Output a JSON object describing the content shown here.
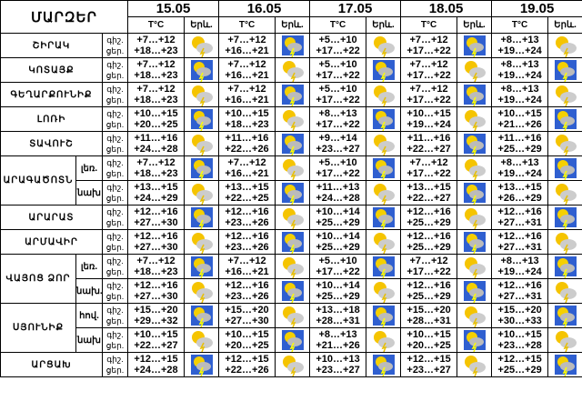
{
  "header": {
    "title": "ՄԱՐԶԵՐ",
    "dates": [
      "15.05",
      "16.05",
      "17.05",
      "18.05",
      "19.05"
    ],
    "temp": "T°C",
    "weather": "Երև.",
    "night": "գիշ.",
    "day": "ցեր."
  },
  "regions": [
    {
      "name": "ՇԻՐԱԿ",
      "parts": [
        {
          "days": [
            [
              "+7…+12",
              "+18…+23"
            ],
            [
              "+7…+12",
              "+16…+21"
            ],
            [
              "+5…+10",
              "+17…+22"
            ],
            [
              "+7…+12",
              "+17…+22"
            ],
            [
              "+8…+13",
              "+19…+24"
            ]
          ]
        }
      ]
    },
    {
      "name": "ԿՈՏԱՅՔ",
      "parts": [
        {
          "days": [
            [
              "+7…+12",
              "+18…+23"
            ],
            [
              "+7…+12",
              "+16…+21"
            ],
            [
              "+5…+10",
              "+17…+22"
            ],
            [
              "+7…+12",
              "+17…+22"
            ],
            [
              "+8…+13",
              "+19…+24"
            ]
          ]
        }
      ]
    },
    {
      "name": "ԳԵՂԱՐՔՈՒՆԻՔ",
      "parts": [
        {
          "days": [
            [
              "+7…+12",
              "+18…+23"
            ],
            [
              "+7…+12",
              "+16…+21"
            ],
            [
              "+5…+10",
              "+17…+22"
            ],
            [
              "+7…+12",
              "+17…+22"
            ],
            [
              "+8…+13",
              "+19…+24"
            ]
          ]
        }
      ]
    },
    {
      "name": "ԼՈՌԻ",
      "parts": [
        {
          "days": [
            [
              "+10…+15",
              "+20…+25"
            ],
            [
              "+10…+15",
              "+18…+23"
            ],
            [
              "+8…+13",
              "+17…+22"
            ],
            [
              "+10…+15",
              "+19…+24"
            ],
            [
              "+10…+15",
              "+21…+26"
            ]
          ]
        }
      ]
    },
    {
      "name": "ՏԱՎՈՒՇ",
      "parts": [
        {
          "days": [
            [
              "+11…+16",
              "+24…+28"
            ],
            [
              "+11…+16",
              "+22…+26"
            ],
            [
              "+9…+14",
              "+23…+27"
            ],
            [
              "+11…+16",
              "+22…+27"
            ],
            [
              "+11…+16",
              "+25…+29"
            ]
          ]
        }
      ]
    },
    {
      "name": "ԱՐԱԳԱԾՈՏՆ",
      "parts": [
        {
          "sub": "լեռ.",
          "days": [
            [
              "+7…+12",
              "+18…+23"
            ],
            [
              "+7…+12",
              "+16…+21"
            ],
            [
              "+5…+10",
              "+17…+22"
            ],
            [
              "+7…+12",
              "+17…+22"
            ],
            [
              "+8…+13",
              "+19…+24"
            ]
          ]
        },
        {
          "sub": "նախ",
          "days": [
            [
              "+13…+15",
              "+24…+29"
            ],
            [
              "+13…+15",
              "+22…+25"
            ],
            [
              "+11…+13",
              "+24…+28"
            ],
            [
              "+13…+15",
              "+22…+27"
            ],
            [
              "+13…+15",
              "+26…+29"
            ]
          ]
        }
      ]
    },
    {
      "name": "ԱՐԱՐԱՏ",
      "parts": [
        {
          "days": [
            [
              "+12…+16",
              "+27…+30"
            ],
            [
              "+12…+16",
              "+23…+26"
            ],
            [
              "+10…+14",
              "+25…+29"
            ],
            [
              "+12…+16",
              "+25…+29"
            ],
            [
              "+12…+16",
              "+27…+31"
            ]
          ]
        }
      ]
    },
    {
      "name": "ԱՐՄԱՎԻՐ",
      "parts": [
        {
          "days": [
            [
              "+12…+16",
              "+27…+30"
            ],
            [
              "+12…+16",
              "+23…+26"
            ],
            [
              "+10…+14",
              "+25…+29"
            ],
            [
              "+12…+16",
              "+25…+29"
            ],
            [
              "+12…+16",
              "+27…+31"
            ]
          ]
        }
      ]
    },
    {
      "name": "ՎԱՅՈՑ ՁՈՐ",
      "parts": [
        {
          "sub": "լեռ.",
          "days": [
            [
              "+7…+12",
              "+18…+23"
            ],
            [
              "+7…+12",
              "+16…+21"
            ],
            [
              "+5…+10",
              "+17…+22"
            ],
            [
              "+7…+12",
              "+17…+22"
            ],
            [
              "+8…+13",
              "+19…+24"
            ]
          ]
        },
        {
          "sub": "նախ.",
          "days": [
            [
              "+12…+16",
              "+27…+30"
            ],
            [
              "+12…+16",
              "+23…+26"
            ],
            [
              "+10…+14",
              "+25…+29"
            ],
            [
              "+12…+16",
              "+25…+29"
            ],
            [
              "+12…+16",
              "+27…+31"
            ]
          ]
        }
      ]
    },
    {
      "name": "ՍՅՈՒՆԻՔ",
      "parts": [
        {
          "sub": "հով.",
          "days": [
            [
              "+15…+20",
              "+29…+32"
            ],
            [
              "+15…+20",
              "+27…+30"
            ],
            [
              "+13…+18",
              "+28…+31"
            ],
            [
              "+15…+20",
              "+28…+31"
            ],
            [
              "+15…+20",
              "+30…+33"
            ]
          ]
        },
        {
          "sub": "նախ",
          "days": [
            [
              "+10…+15",
              "+22…+27"
            ],
            [
              "+10…+15",
              "+20…+25"
            ],
            [
              "+8…+13",
              "+21…+26"
            ],
            [
              "+10…+15",
              "+20…+25"
            ],
            [
              "+10…+15",
              "+23…+28"
            ]
          ]
        }
      ]
    },
    {
      "name": "ԱՐՑԱԽ",
      "parts": [
        {
          "days": [
            [
              "+12…+15",
              "+24…+28"
            ],
            [
              "+12…+15",
              "+22…+26"
            ],
            [
              "+10…+13",
              "+23…+27"
            ],
            [
              "+12…+15",
              "+23…+27"
            ],
            [
              "+12…+15",
              "+25…+29"
            ]
          ]
        }
      ]
    }
  ]
}
